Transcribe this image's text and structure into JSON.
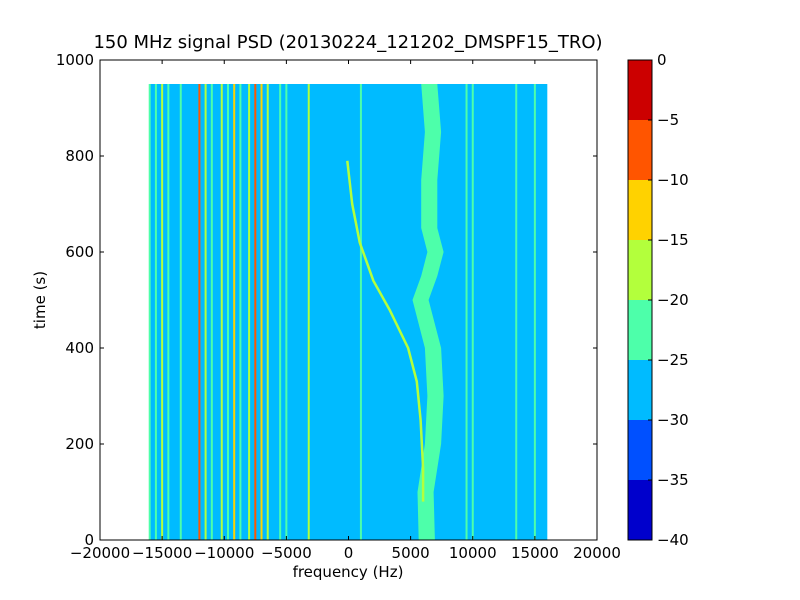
{
  "chart_data": {
    "type": "heatmap",
    "title": "150 MHz signal PSD (20130224_121202_DMSPF15_TRO)",
    "xlabel": "frequency (Hz)",
    "ylabel": "time (s)",
    "xlim": [
      -20000,
      20000
    ],
    "ylim": [
      0,
      1000
    ],
    "x_ticks": [
      -20000,
      -15000,
      -10000,
      -5000,
      0,
      5000,
      10000,
      15000,
      20000
    ],
    "x_tick_labels": [
      "−20000",
      "−15000",
      "−10000",
      "−5000",
      "0",
      "5000",
      "10000",
      "15000",
      "20000"
    ],
    "y_ticks": [
      0,
      200,
      400,
      600,
      800,
      1000
    ],
    "y_tick_labels": [
      "0",
      "200",
      "400",
      "600",
      "800",
      "1000"
    ],
    "data_extent": {
      "freq_min": -16000,
      "freq_max": 16000,
      "time_min": 0,
      "time_max": 950
    },
    "background_level": -27.5,
    "colorbar": {
      "levels": [
        -40,
        -35,
        -30,
        -25,
        -20,
        -15,
        -10,
        -5,
        0
      ],
      "tick_labels": [
        "−40",
        "−35",
        "−30",
        "−25",
        "−20",
        "−15",
        "−10",
        "−5",
        "0"
      ],
      "colors": [
        "#0000cc",
        "#0050ff",
        "#00bbff",
        "#4dffaa",
        "#b3ff3c",
        "#ffd200",
        "#ff5500",
        "#cc0000"
      ]
    },
    "carrier_lines": [
      {
        "freq": -16000,
        "level": -22.5
      },
      {
        "freq": -15500,
        "level": -22.5
      },
      {
        "freq": -15000,
        "level": -17.5
      },
      {
        "freq": -14500,
        "level": -22.5
      },
      {
        "freq": -13500,
        "level": -22.5
      },
      {
        "freq": -12000,
        "level": -7.5
      },
      {
        "freq": -11500,
        "level": -17.5
      },
      {
        "freq": -11000,
        "level": -22.5
      },
      {
        "freq": -10200,
        "level": -17.5
      },
      {
        "freq": -9700,
        "level": -22.5
      },
      {
        "freq": -9200,
        "level": -12.5
      },
      {
        "freq": -8700,
        "level": -22.5
      },
      {
        "freq": -8000,
        "level": -17.5
      },
      {
        "freq": -7500,
        "level": -7.5
      },
      {
        "freq": -7000,
        "level": -12.5
      },
      {
        "freq": -6500,
        "level": -17.5
      },
      {
        "freq": -5500,
        "level": -22.5
      },
      {
        "freq": -5000,
        "level": -22.5
      },
      {
        "freq": -3200,
        "level": -17.5
      },
      {
        "freq": 1000,
        "level": -22.5
      },
      {
        "freq": 9500,
        "level": -22.5
      },
      {
        "freq": 10000,
        "level": -22.5
      },
      {
        "freq": 13500,
        "level": -22.5
      },
      {
        "freq": 15000,
        "level": -22.5
      }
    ],
    "doppler_track": {
      "level": -17.5,
      "points": [
        [
          6000,
          80
        ],
        [
          6000,
          150
        ],
        [
          5800,
          250
        ],
        [
          5500,
          330
        ],
        [
          4800,
          400
        ],
        [
          3300,
          480
        ],
        [
          2000,
          540
        ],
        [
          900,
          620
        ],
        [
          300,
          700
        ],
        [
          -100,
          790
        ]
      ]
    },
    "noise_band": {
      "level": -22.5,
      "points": [
        [
          6300,
          0
        ],
        [
          6200,
          100
        ],
        [
          6800,
          200
        ],
        [
          7000,
          300
        ],
        [
          6800,
          400
        ],
        [
          5800,
          500
        ],
        [
          6500,
          550
        ],
        [
          7000,
          600
        ],
        [
          6500,
          650
        ],
        [
          6500,
          750
        ],
        [
          6800,
          850
        ],
        [
          6500,
          950
        ]
      ]
    }
  }
}
